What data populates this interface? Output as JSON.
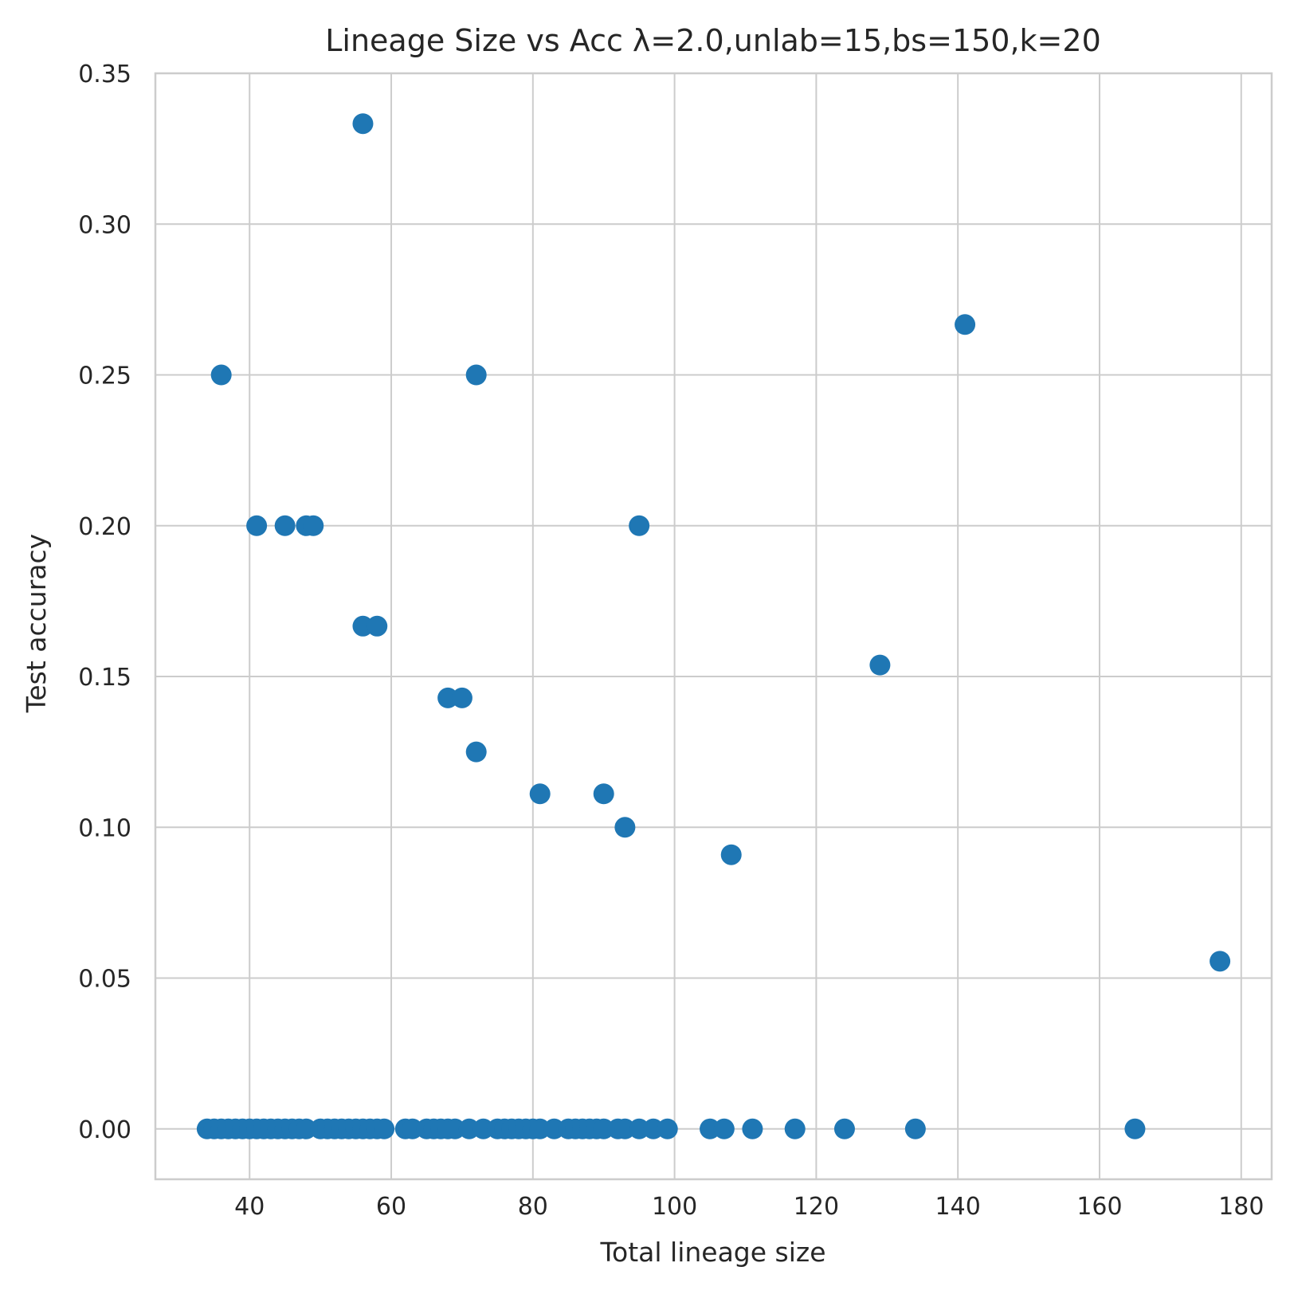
{
  "chart_data": {
    "type": "scatter",
    "title": "Lineage Size vs Acc λ=2.0,unlab=15,bs=150,k=20",
    "xlabel": "Total lineage size",
    "ylabel": "Test accuracy",
    "xlim": [
      26.7,
      184.3
    ],
    "ylim": [
      -0.0167,
      0.35
    ],
    "xticks": [
      40,
      60,
      80,
      100,
      120,
      140,
      160,
      180
    ],
    "yticks": [
      0.0,
      0.05,
      0.1,
      0.15,
      0.2,
      0.25,
      0.3,
      0.35
    ],
    "xtick_labels": [
      "40",
      "60",
      "80",
      "100",
      "120",
      "140",
      "160",
      "180"
    ],
    "ytick_labels": [
      "0.00",
      "0.05",
      "0.10",
      "0.15",
      "0.20",
      "0.25",
      "0.30",
      "0.35"
    ],
    "grid": true,
    "color": "#1f77b4",
    "points": [
      {
        "x": 56,
        "y": 0.3333
      },
      {
        "x": 141,
        "y": 0.2667
      },
      {
        "x": 36,
        "y": 0.25
      },
      {
        "x": 72,
        "y": 0.25
      },
      {
        "x": 41,
        "y": 0.2
      },
      {
        "x": 45,
        "y": 0.2
      },
      {
        "x": 48,
        "y": 0.2
      },
      {
        "x": 49,
        "y": 0.2
      },
      {
        "x": 95,
        "y": 0.2
      },
      {
        "x": 56,
        "y": 0.1667
      },
      {
        "x": 58,
        "y": 0.1667
      },
      {
        "x": 129,
        "y": 0.1538
      },
      {
        "x": 68,
        "y": 0.1429
      },
      {
        "x": 70,
        "y": 0.1429
      },
      {
        "x": 72,
        "y": 0.125
      },
      {
        "x": 81,
        "y": 0.1111
      },
      {
        "x": 90,
        "y": 0.1111
      },
      {
        "x": 93,
        "y": 0.1
      },
      {
        "x": 108,
        "y": 0.0909
      },
      {
        "x": 177,
        "y": 0.0556
      },
      {
        "x": 34,
        "y": 0
      },
      {
        "x": 35,
        "y": 0
      },
      {
        "x": 36,
        "y": 0
      },
      {
        "x": 37,
        "y": 0
      },
      {
        "x": 38,
        "y": 0
      },
      {
        "x": 39,
        "y": 0
      },
      {
        "x": 40,
        "y": 0
      },
      {
        "x": 41,
        "y": 0
      },
      {
        "x": 42,
        "y": 0
      },
      {
        "x": 43,
        "y": 0
      },
      {
        "x": 44,
        "y": 0
      },
      {
        "x": 45,
        "y": 0
      },
      {
        "x": 46,
        "y": 0
      },
      {
        "x": 47,
        "y": 0
      },
      {
        "x": 48,
        "y": 0
      },
      {
        "x": 50,
        "y": 0
      },
      {
        "x": 51,
        "y": 0
      },
      {
        "x": 52,
        "y": 0
      },
      {
        "x": 53,
        "y": 0
      },
      {
        "x": 54,
        "y": 0
      },
      {
        "x": 55,
        "y": 0
      },
      {
        "x": 56,
        "y": 0
      },
      {
        "x": 57,
        "y": 0
      },
      {
        "x": 58,
        "y": 0
      },
      {
        "x": 59,
        "y": 0
      },
      {
        "x": 62,
        "y": 0
      },
      {
        "x": 63,
        "y": 0
      },
      {
        "x": 65,
        "y": 0
      },
      {
        "x": 66,
        "y": 0
      },
      {
        "x": 67,
        "y": 0
      },
      {
        "x": 68,
        "y": 0
      },
      {
        "x": 69,
        "y": 0
      },
      {
        "x": 71,
        "y": 0
      },
      {
        "x": 73,
        "y": 0
      },
      {
        "x": 75,
        "y": 0
      },
      {
        "x": 76,
        "y": 0
      },
      {
        "x": 77,
        "y": 0
      },
      {
        "x": 78,
        "y": 0
      },
      {
        "x": 79,
        "y": 0
      },
      {
        "x": 80,
        "y": 0
      },
      {
        "x": 81,
        "y": 0
      },
      {
        "x": 83,
        "y": 0
      },
      {
        "x": 85,
        "y": 0
      },
      {
        "x": 86,
        "y": 0
      },
      {
        "x": 87,
        "y": 0
      },
      {
        "x": 88,
        "y": 0
      },
      {
        "x": 89,
        "y": 0
      },
      {
        "x": 90,
        "y": 0
      },
      {
        "x": 92,
        "y": 0
      },
      {
        "x": 93,
        "y": 0
      },
      {
        "x": 95,
        "y": 0
      },
      {
        "x": 97,
        "y": 0
      },
      {
        "x": 99,
        "y": 0
      },
      {
        "x": 105,
        "y": 0
      },
      {
        "x": 107,
        "y": 0
      },
      {
        "x": 111,
        "y": 0
      },
      {
        "x": 117,
        "y": 0
      },
      {
        "x": 124,
        "y": 0
      },
      {
        "x": 134,
        "y": 0
      },
      {
        "x": 165,
        "y": 0
      }
    ]
  }
}
